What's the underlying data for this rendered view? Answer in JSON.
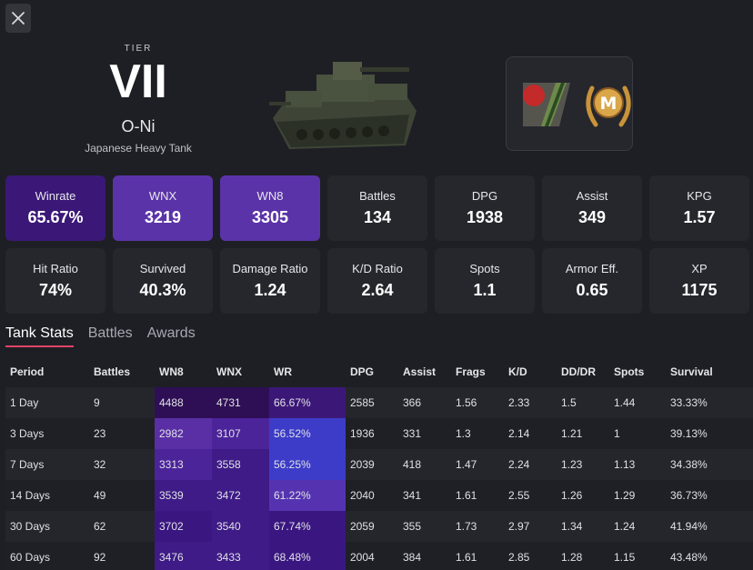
{
  "header": {
    "tier_label": "TIER",
    "tier_value": "VII",
    "tank_name": "O-Ni",
    "tank_type": "Japanese Heavy Tank"
  },
  "badges": {
    "mastery_letter": "M"
  },
  "colors": {
    "highlight_dark": "#3b1877",
    "highlight_mid": "#5b33a8",
    "tab_underline": "#e04466",
    "wr_blue": "#3c3cc8"
  },
  "stats_row1": [
    {
      "label": "Winrate",
      "value": "65.67%",
      "style": "hl-dark"
    },
    {
      "label": "WNX",
      "value": "3219",
      "style": "hl-mid"
    },
    {
      "label": "WN8",
      "value": "3305",
      "style": "hl-mid"
    },
    {
      "label": "Battles",
      "value": "134",
      "style": ""
    },
    {
      "label": "DPG",
      "value": "1938",
      "style": ""
    },
    {
      "label": "Assist",
      "value": "349",
      "style": ""
    },
    {
      "label": "KPG",
      "value": "1.57",
      "style": ""
    }
  ],
  "stats_row2": [
    {
      "label": "Hit Ratio",
      "value": "74%"
    },
    {
      "label": "Survived",
      "value": "40.3%"
    },
    {
      "label": "Damage Ratio",
      "value": "1.24"
    },
    {
      "label": "K/D Ratio",
      "value": "2.64"
    },
    {
      "label": "Spots",
      "value": "1.1"
    },
    {
      "label": "Armor Eff.",
      "value": "0.65"
    },
    {
      "label": "XP",
      "value": "1175"
    }
  ],
  "tabs": [
    "Tank Stats",
    "Battles",
    "Awards"
  ],
  "table": {
    "columns": [
      "Period",
      "Battles",
      "WN8",
      "WNX",
      "WR",
      "DPG",
      "Assist",
      "Frags",
      "K/D",
      "DD/DR",
      "Spots",
      "Survival"
    ],
    "rows": [
      {
        "cells": [
          "1 Day",
          "9",
          "4488",
          "4731",
          "66.67%",
          "2585",
          "366",
          "1.56",
          "2.33",
          "1.5",
          "1.44",
          "33.33%"
        ],
        "c": [
          "#2e0f55",
          "#2e0f55",
          "#3b1877"
        ]
      },
      {
        "cells": [
          "3 Days",
          "23",
          "2982",
          "3107",
          "56.52%",
          "1936",
          "331",
          "1.3",
          "2.14",
          "1.21",
          "1",
          "39.13%"
        ],
        "c": [
          "#5a2fa6",
          "#4c249a",
          "#3c3cc8"
        ]
      },
      {
        "cells": [
          "7 Days",
          "32",
          "3313",
          "3558",
          "56.25%",
          "2039",
          "418",
          "1.47",
          "2.24",
          "1.23",
          "1.13",
          "34.38%"
        ],
        "c": [
          "#4c249a",
          "#3e1b86",
          "#3c3cc8"
        ]
      },
      {
        "cells": [
          "14 Days",
          "49",
          "3539",
          "3472",
          "61.22%",
          "2040",
          "341",
          "1.61",
          "2.55",
          "1.26",
          "1.29",
          "36.73%"
        ],
        "c": [
          "#3e1b86",
          "#3e1b86",
          "#5533b0"
        ]
      },
      {
        "cells": [
          "30 Days",
          "62",
          "3702",
          "3540",
          "67.74%",
          "2059",
          "355",
          "1.73",
          "2.97",
          "1.34",
          "1.24",
          "41.94%"
        ],
        "c": [
          "#3a1780",
          "#3e1b86",
          "#3a1780"
        ]
      },
      {
        "cells": [
          "60 Days",
          "92",
          "3476",
          "3433",
          "68.48%",
          "2004",
          "384",
          "1.61",
          "2.85",
          "1.28",
          "1.15",
          "43.48%"
        ],
        "c": [
          "#3e1b86",
          "#3e1b86",
          "#3a1780"
        ]
      }
    ]
  }
}
